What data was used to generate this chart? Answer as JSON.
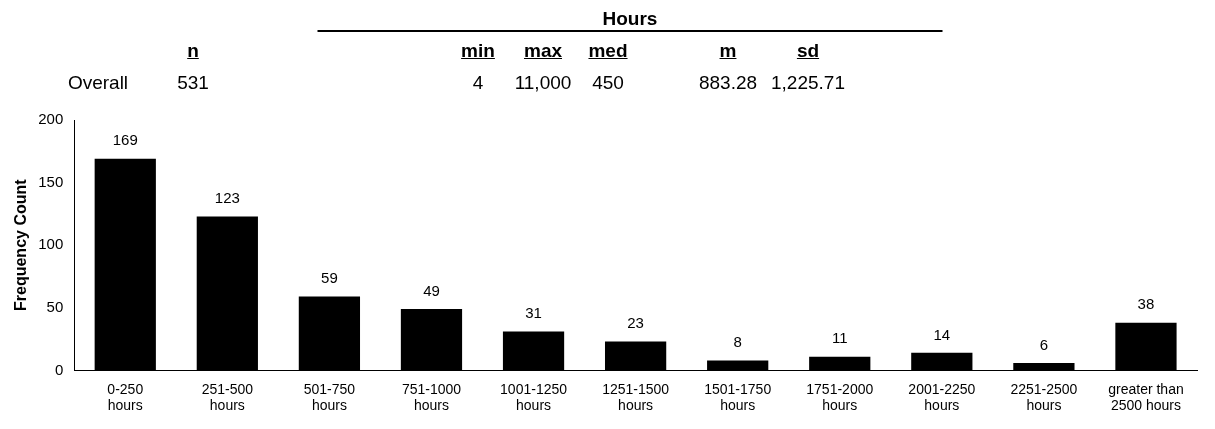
{
  "chart_data": [
    {
      "type": "other",
      "title": "Hours",
      "annotations": [
        "n",
        "min",
        "max",
        "med",
        "m",
        "sd",
        "Overall",
        "531",
        "4",
        "11,000",
        "450",
        "883.28",
        "1,225.71"
      ]
    },
    {
      "type": "bar",
      "ylabel": "Frequency Count",
      "categories": [
        "0-250\nhours",
        "251-500\nhours",
        "501-750\nhours",
        "751-1000\nhours",
        "1001-1250\nhours",
        "1251-1500\nhours",
        "1501-1750\nhours",
        "1751-2000\nhours",
        "2001-2250\nhours",
        "2251-2500\nhours",
        "greater than\n2500 hours"
      ],
      "values": [
        169,
        123,
        59,
        49,
        31,
        23,
        8,
        11,
        14,
        6,
        38
      ],
      "color": "#000000",
      "ylim": [
        0,
        200
      ],
      "yticks": [
        0,
        50,
        100,
        150,
        200
      ],
      "grid": false,
      "legend": false,
      "data_labels": true
    }
  ]
}
